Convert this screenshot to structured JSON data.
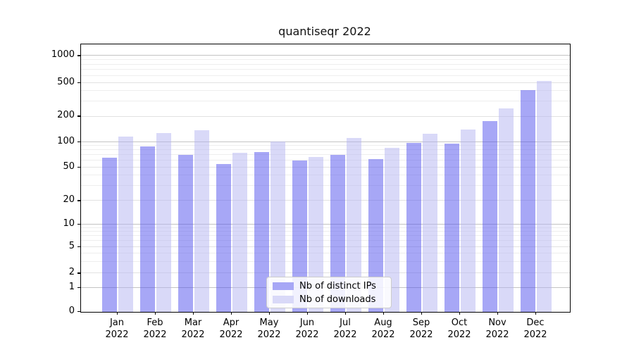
{
  "title": "quantiseqr 2022",
  "chart_data": {
    "type": "bar",
    "title": "quantiseqr 2022",
    "scale": "symlog",
    "grid": true,
    "categories": [
      "Jan 2022",
      "Feb 2022",
      "Mar 2022",
      "Apr 2022",
      "May 2022",
      "Jun 2022",
      "Jul 2022",
      "Aug 2022",
      "Sep 2022",
      "Oct 2022",
      "Nov 2022",
      "Dec 2022"
    ],
    "series": [
      {
        "name": "Nb of distinct IPs",
        "fill": "rgba(80,80,238,0.5)",
        "legend_color": "#a7a7f6",
        "values": [
          65,
          89,
          70,
          55,
          76,
          60,
          70,
          63,
          97,
          95,
          177,
          410
        ]
      },
      {
        "name": "Nb of downloads",
        "fill": "rgba(180,180,242,0.5)",
        "legend_color": "#d9d9f8",
        "values": [
          116,
          128,
          137,
          74,
          101,
          66,
          112,
          85,
          125,
          140,
          248,
          525
        ]
      }
    ],
    "xlabel": "",
    "ylabel": "",
    "yticks": [
      0,
      1,
      2,
      5,
      10,
      20,
      50,
      100,
      200,
      500,
      1000
    ],
    "ytick_labels": [
      "0",
      "1",
      "2",
      "5",
      "10",
      "20",
      "50",
      "100",
      "200",
      "500",
      "1000"
    ],
    "major_decades": [
      1,
      10,
      100,
      1000
    ],
    "minor_gridline_values": [
      3,
      4,
      6,
      7,
      8,
      9,
      30,
      40,
      60,
      70,
      80,
      90,
      300,
      400,
      600,
      700,
      800,
      900
    ],
    "ylim": [
      0,
      1140
    ],
    "legend_position": "lower center",
    "scale_anchors": {
      "ticks": [
        0,
        1,
        2,
        5,
        10,
        20,
        50,
        100,
        200,
        500,
        1000
      ],
      "fractions": [
        0,
        0.0903,
        0.1439,
        0.2434,
        0.3263,
        0.415,
        0.5403,
        0.635,
        0.7303,
        0.856,
        0.957
      ]
    },
    "colors": {
      "major_grid": "#c3c3c3",
      "tick_grid": "#e2e2e2",
      "minor_grid": "#eeeeee",
      "spine": "#000000",
      "text": "#000000"
    }
  }
}
